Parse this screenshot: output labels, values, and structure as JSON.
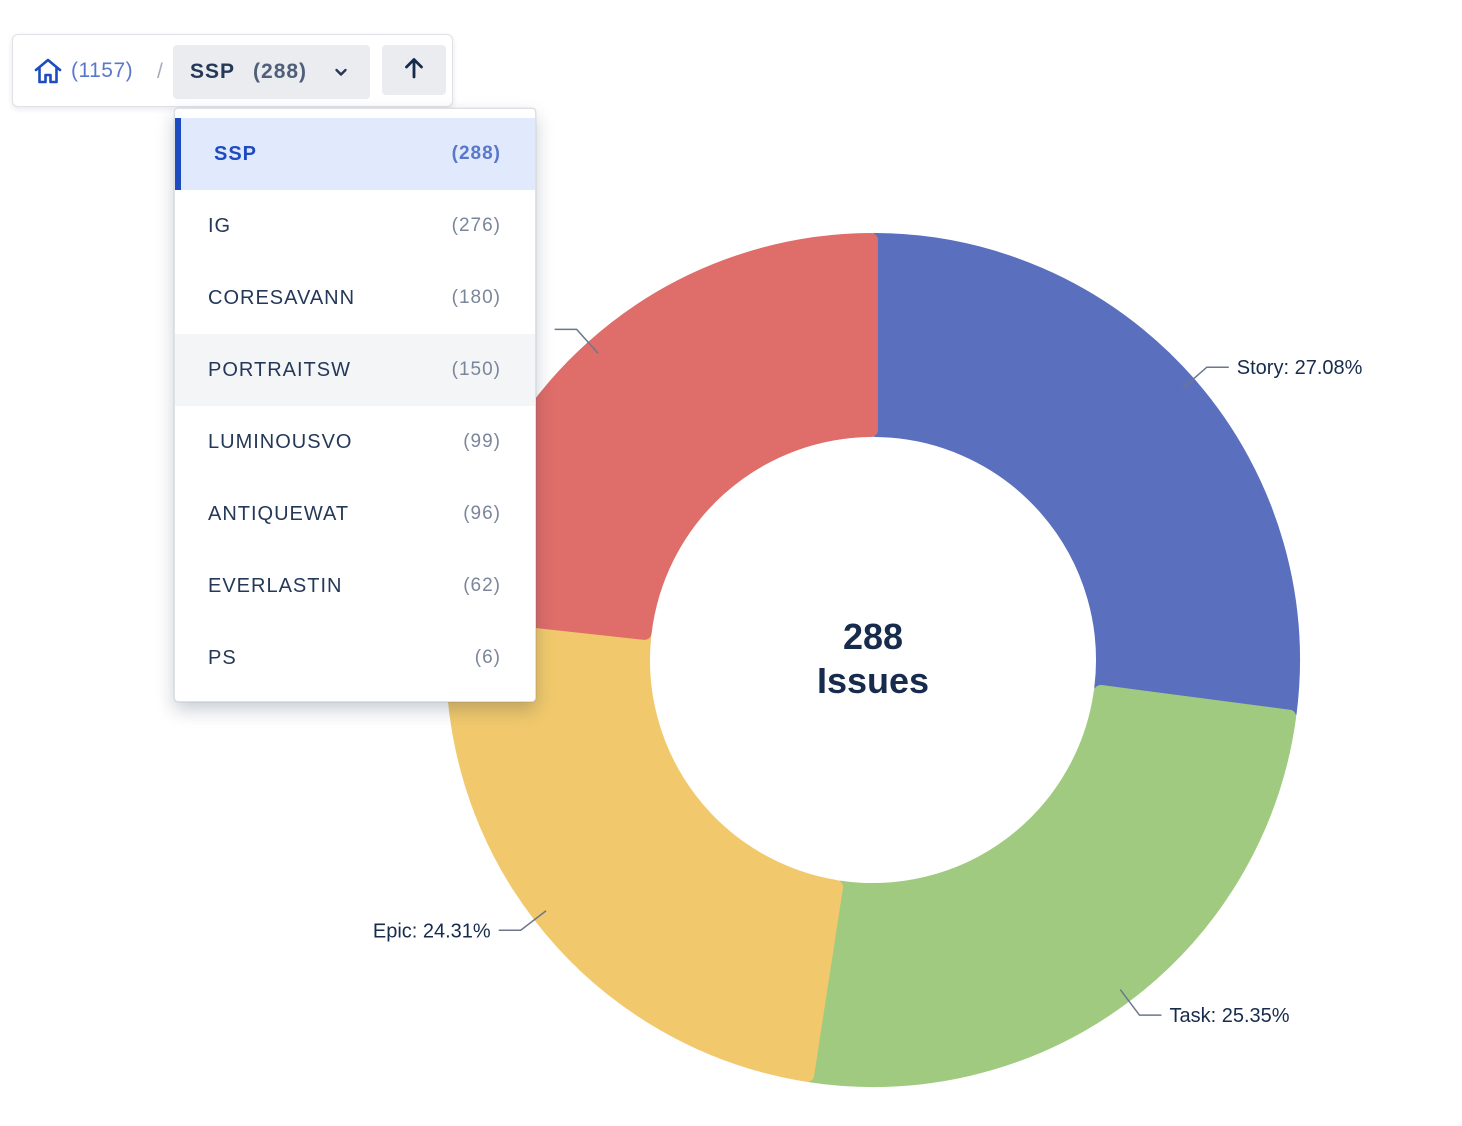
{
  "breadcrumb": {
    "home_count": "(1157)",
    "separator": "/",
    "selected_project": "SSP",
    "selected_count": "(288)"
  },
  "dropdown": {
    "items": [
      {
        "name": "SSP",
        "count": "(288)",
        "state": "selected"
      },
      {
        "name": "IG",
        "count": "(276)",
        "state": ""
      },
      {
        "name": "CORESAVANN",
        "count": "(180)",
        "state": ""
      },
      {
        "name": "PORTRAITSW",
        "count": "(150)",
        "state": "hovered"
      },
      {
        "name": "LUMINOUSVO",
        "count": "(99)",
        "state": ""
      },
      {
        "name": "ANTIQUEWAT",
        "count": "(96)",
        "state": ""
      },
      {
        "name": "EVERLASTIN",
        "count": "(62)",
        "state": ""
      },
      {
        "name": "PS",
        "count": "(6)",
        "state": ""
      }
    ]
  },
  "chart_data": {
    "type": "pie",
    "center_value": "288",
    "center_label": "Issues",
    "slices": [
      {
        "label": "Story: 27.08%",
        "value": 27.08,
        "color": "#5b6fbf"
      },
      {
        "label": "Task: 25.35%",
        "value": 25.35,
        "color": "#a0ca80"
      },
      {
        "label": "Epic: 24.31%",
        "value": 24.31,
        "color": "#f1c96c"
      },
      {
        "label": "",
        "value": 23.26,
        "color": "#df6d69"
      }
    ]
  }
}
